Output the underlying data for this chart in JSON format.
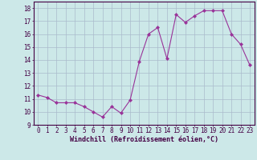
{
  "x": [
    0,
    1,
    2,
    3,
    4,
    5,
    6,
    7,
    8,
    9,
    10,
    11,
    12,
    13,
    14,
    15,
    16,
    17,
    18,
    19,
    20,
    21,
    22,
    23
  ],
  "y": [
    11.3,
    11.1,
    10.7,
    10.7,
    10.7,
    10.4,
    10.0,
    9.6,
    10.4,
    9.9,
    10.9,
    13.9,
    16.0,
    16.5,
    14.1,
    17.5,
    16.9,
    17.4,
    17.8,
    17.8,
    17.8,
    16.0,
    15.2,
    13.6
  ],
  "line_color": "#993399",
  "marker": "D",
  "marker_size": 2.0,
  "bg_color": "#cce8e8",
  "grid_color": "#aabbcc",
  "xlabel": "Windchill (Refroidissement éolien,°C)",
  "ylim": [
    9,
    18.5
  ],
  "yticks": [
    9,
    10,
    11,
    12,
    13,
    14,
    15,
    16,
    17,
    18
  ],
  "xticks": [
    0,
    1,
    2,
    3,
    4,
    5,
    6,
    7,
    8,
    9,
    10,
    11,
    12,
    13,
    14,
    15,
    16,
    17,
    18,
    19,
    20,
    21,
    22,
    23
  ],
  "xlim": [
    -0.5,
    23.5
  ],
  "tick_fontsize": 5.5,
  "xlabel_fontsize": 6.0,
  "line_width": 0.8
}
